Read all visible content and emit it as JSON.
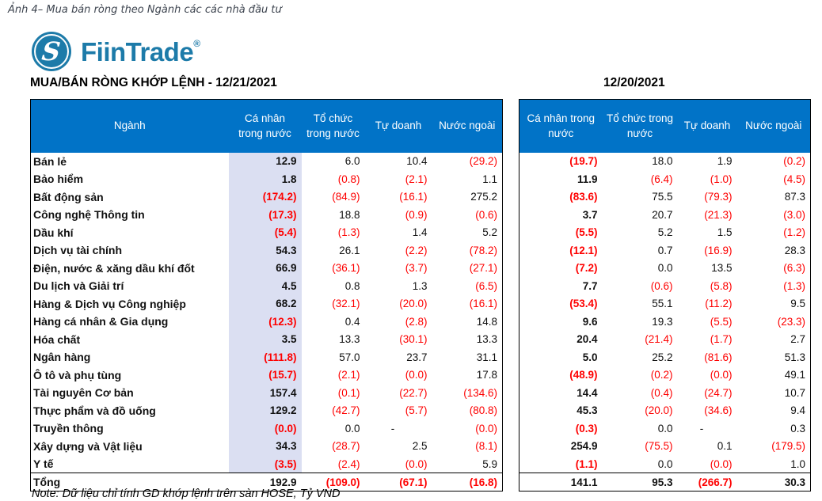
{
  "caption": "Ảnh 4– Mua bán ròng theo Ngành các các nhà đầu tư",
  "brand": {
    "name": "FiinTrade",
    "registered_mark": "®"
  },
  "note": "Note: Dữ liệu chỉ tính GD khớp lệnh trên sàn HOSE, Tỷ VND",
  "colors": {
    "header_bg": "#0173c7",
    "negative": "#fe0000",
    "text": "#111111",
    "highlight_column_bg": "#dbdff2",
    "brand": "#1d7ba9"
  },
  "left_table": {
    "title": "MUA/BÁN RÒNG KHỚP LỆNH - 12/21/2021",
    "columns": [
      "Ngành",
      "Cá nhân trong nước",
      "Tổ chức trong nước",
      "Tự doanh",
      "Nước ngoài"
    ],
    "rows": [
      {
        "label": "Bán lẻ",
        "values": [
          "12.9",
          "6.0",
          "10.4",
          "(29.2)"
        ]
      },
      {
        "label": "Bảo hiểm",
        "values": [
          "1.8",
          "(0.8)",
          "(2.1)",
          "1.1"
        ]
      },
      {
        "label": "Bất động sản",
        "values": [
          "(174.2)",
          "(84.9)",
          "(16.1)",
          "275.2"
        ]
      },
      {
        "label": "Công nghệ Thông tin",
        "values": [
          "(17.3)",
          "18.8",
          "(0.9)",
          "(0.6)"
        ]
      },
      {
        "label": "Dầu khí",
        "values": [
          "(5.4)",
          "(1.3)",
          "1.4",
          "5.2"
        ]
      },
      {
        "label": "Dịch vụ tài chính",
        "values": [
          "54.3",
          "26.1",
          "(2.2)",
          "(78.2)"
        ]
      },
      {
        "label": "Điện, nước & xăng dầu khí đốt",
        "values": [
          "66.9",
          "(36.1)",
          "(3.7)",
          "(27.1)"
        ]
      },
      {
        "label": "Du lịch và Giải trí",
        "values": [
          "4.5",
          "0.8",
          "1.3",
          "(6.5)"
        ]
      },
      {
        "label": "Hàng & Dịch vụ Công nghiệp",
        "values": [
          "68.2",
          "(32.1)",
          "(20.0)",
          "(16.1)"
        ]
      },
      {
        "label": "Hàng cá nhân & Gia dụng",
        "values": [
          "(12.3)",
          "0.4",
          "(2.8)",
          "14.8"
        ]
      },
      {
        "label": "Hóa chất",
        "values": [
          "3.5",
          "13.3",
          "(30.1)",
          "13.3"
        ]
      },
      {
        "label": "Ngân hàng",
        "values": [
          "(111.8)",
          "57.0",
          "23.7",
          "31.1"
        ]
      },
      {
        "label": "Ô tô và phụ tùng",
        "values": [
          "(15.7)",
          "(2.1)",
          "(0.0)",
          "17.8"
        ]
      },
      {
        "label": "Tài nguyên Cơ bản",
        "values": [
          "157.4",
          "(0.1)",
          "(22.7)",
          "(134.6)"
        ]
      },
      {
        "label": "Thực phẩm và đồ uống",
        "values": [
          "129.2",
          "(42.7)",
          "(5.7)",
          "(80.8)"
        ]
      },
      {
        "label": "Truyền thông",
        "values": [
          "(0.0)",
          "0.0",
          "-",
          "(0.0)"
        ]
      },
      {
        "label": "Xây dựng và Vật liệu",
        "values": [
          "34.3",
          "(28.7)",
          "2.5",
          "(8.1)"
        ]
      },
      {
        "label": "Y tế",
        "values": [
          "(3.5)",
          "(2.4)",
          "(0.0)",
          "5.9"
        ]
      }
    ],
    "total": {
      "label": "Tổng",
      "values": [
        "192.9",
        "(109.0)",
        "(67.1)",
        "(16.8)"
      ]
    }
  },
  "right_table": {
    "title": "12/20/2021",
    "columns": [
      "Cá nhân trong nước",
      "Tổ chức trong nước",
      "Tự doanh",
      "Nước ngoài"
    ],
    "rows": [
      {
        "values": [
          "(19.7)",
          "18.0",
          "1.9",
          "(0.2)"
        ]
      },
      {
        "values": [
          "11.9",
          "(6.4)",
          "(1.0)",
          "(4.5)"
        ]
      },
      {
        "values": [
          "(83.6)",
          "75.5",
          "(79.3)",
          "87.3"
        ]
      },
      {
        "values": [
          "3.7",
          "20.7",
          "(21.3)",
          "(3.0)"
        ]
      },
      {
        "values": [
          "(5.5)",
          "5.2",
          "1.5",
          "(1.2)"
        ]
      },
      {
        "values": [
          "(12.1)",
          "0.7",
          "(16.9)",
          "28.3"
        ]
      },
      {
        "values": [
          "(7.2)",
          "0.0",
          "13.5",
          "(6.3)"
        ]
      },
      {
        "values": [
          "7.7",
          "(0.6)",
          "(5.8)",
          "(1.3)"
        ]
      },
      {
        "values": [
          "(53.4)",
          "55.1",
          "(11.2)",
          "9.5"
        ]
      },
      {
        "values": [
          "9.6",
          "19.3",
          "(5.5)",
          "(23.3)"
        ]
      },
      {
        "values": [
          "20.4",
          "(21.4)",
          "(1.7)",
          "2.7"
        ]
      },
      {
        "values": [
          "5.0",
          "25.2",
          "(81.6)",
          "51.3"
        ]
      },
      {
        "values": [
          "(48.9)",
          "(0.2)",
          "(0.0)",
          "49.1"
        ]
      },
      {
        "values": [
          "14.4",
          "(0.4)",
          "(24.7)",
          "10.7"
        ]
      },
      {
        "values": [
          "45.3",
          "(20.0)",
          "(34.6)",
          "9.4"
        ]
      },
      {
        "values": [
          "(0.3)",
          "0.0",
          "-",
          "0.3"
        ]
      },
      {
        "values": [
          "254.9",
          "(75.5)",
          "0.1",
          "(179.5)"
        ]
      },
      {
        "values": [
          "(1.1)",
          "0.0",
          "(0.0)",
          "1.0"
        ]
      }
    ],
    "total": {
      "values": [
        "141.1",
        "95.3",
        "(266.7)",
        "30.3"
      ]
    }
  }
}
